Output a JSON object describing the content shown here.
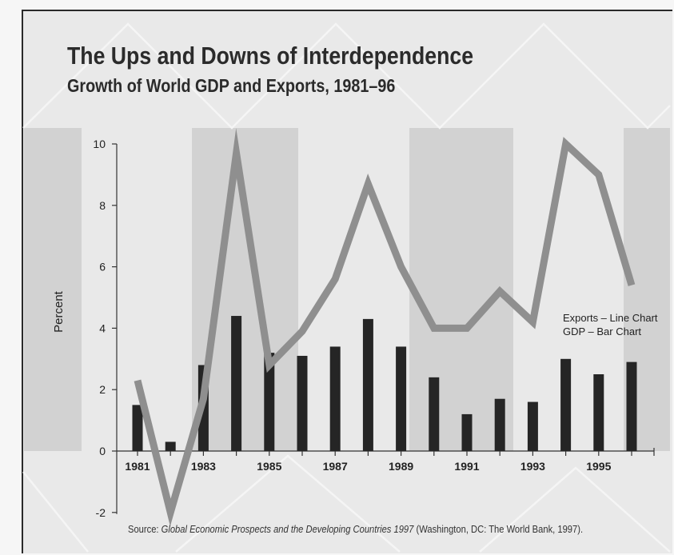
{
  "chart_data": {
    "type": "bar",
    "title": "The Ups and Downs of Interdependence",
    "subtitle": "Growth of World GDP and Exports, 1981–96",
    "ylabel": "Percent",
    "xlabel": "",
    "ylim": [
      -2,
      10
    ],
    "yticks": [
      -2,
      0,
      2,
      4,
      6,
      8,
      10
    ],
    "years": [
      1981,
      1982,
      1983,
      1984,
      1985,
      1986,
      1987,
      1988,
      1989,
      1990,
      1991,
      1992,
      1993,
      1994,
      1995,
      1996
    ],
    "x_tick_labels": [
      "1981",
      "1983",
      "1985",
      "1987",
      "1989",
      "1991",
      "1993",
      "1995"
    ],
    "series": [
      {
        "name": "GDP – Bar Chart",
        "type": "bar",
        "values": [
          1.5,
          0.3,
          2.8,
          4.4,
          3.2,
          3.1,
          3.4,
          4.3,
          3.4,
          2.4,
          1.2,
          1.7,
          1.6,
          3.0,
          2.5,
          2.9
        ]
      },
      {
        "name": "Exports – Line Chart",
        "type": "line",
        "values": [
          2.3,
          -2.0,
          1.7,
          9.7,
          2.8,
          3.9,
          5.6,
          8.7,
          6.0,
          4.0,
          4.0,
          5.2,
          4.2,
          10.0,
          9.0,
          5.4
        ]
      }
    ],
    "legend_position": "right",
    "colors": {
      "bar": "#252525",
      "line": "#8f8f8f",
      "shaded_band": "#d2d2d2",
      "background": "#e9e9e9"
    },
    "grid": false,
    "source": {
      "prefix": "Source:",
      "title": "Global Economic Prospects and the Developing Countries 1997",
      "suffix": "(Washington, DC: The World Bank, 1997)."
    }
  }
}
